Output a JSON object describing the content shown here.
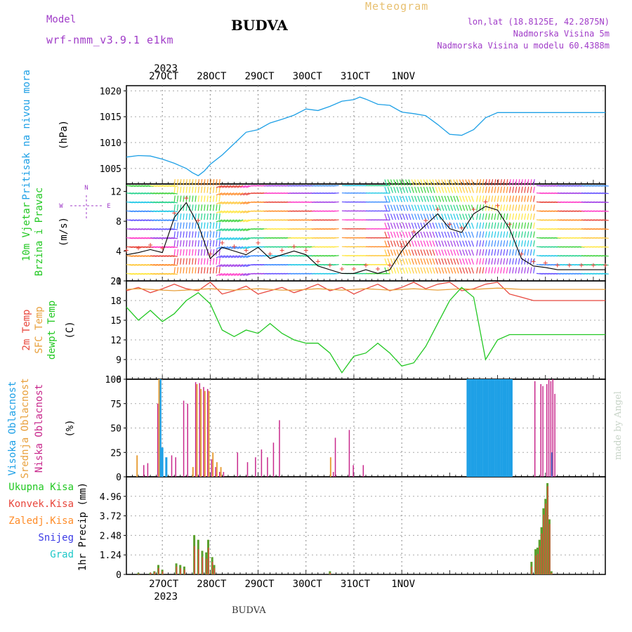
{
  "header": {
    "model_label": "Model",
    "model_name": "wrf-nmm_v3.9.1  e1km",
    "title": "BUDVA",
    "subtitle": "Meteogram",
    "coords": "lon,lat (18.8125E, 42.2875N)",
    "elevation": "Nadmorska Visina 5m",
    "model_elevation": "Nadmorska Visina u modelu 60.4388m",
    "footer": "BUDVA",
    "watermark": "made by Angel"
  },
  "colors": {
    "pressure": "#1EA0E6",
    "temp2m": "#E8463C",
    "sfc_temp": "#E8A03C",
    "dewpoint": "#23C823",
    "high_cloud": "#1EA0E6",
    "mid_cloud": "#E8A03C",
    "low_cloud": "#C8288C",
    "total_rain": "#5AA02D",
    "conv_rain": "#E8463C",
    "magenta_label": "#A03CC8"
  },
  "chart_data": [
    {
      "type": "line",
      "id": "pressure",
      "ylabel": "Pritisak na nivou mora",
      "unit": "(hPa)",
      "ylim": [
        1002,
        1021
      ],
      "yticks": [
        1005,
        1010,
        1015,
        1020
      ],
      "x": [
        0,
        6,
        12,
        18,
        24,
        27,
        30,
        33,
        36,
        39,
        42,
        48,
        54,
        60,
        66,
        72,
        78,
        84,
        90,
        96,
        102,
        108,
        114,
        117,
        120,
        126,
        132,
        138,
        144,
        150,
        156,
        162,
        168,
        174,
        180,
        186,
        192,
        198,
        204,
        210,
        216,
        222,
        228,
        234,
        240
      ],
      "series": [
        {
          "name": "pressure",
          "values": [
            1007.2,
            1007.5,
            1007.4,
            1006.8,
            1006.0,
            1005.5,
            1005.0,
            1004.2,
            1003.6,
            1004.5,
            1005.8,
            1007.6,
            1009.8,
            1012.0,
            1012.5,
            1013.8,
            1014.5,
            1015.3,
            1016.5,
            1016.2,
            1017.0,
            1018.0,
            1018.3,
            1018.8,
            1018.4,
            1017.4,
            1017.2,
            1015.9,
            1015.6,
            1015.2,
            1013.5,
            1011.6,
            1011.4,
            1012.5,
            1014.8,
            1015.8,
            1015.8,
            1015.8,
            1015.8,
            1015.8,
            1015.8,
            1015.8,
            1015.8,
            1015.8,
            1015.8
          ]
        }
      ]
    },
    {
      "type": "line",
      "id": "wind",
      "ylabel": "10m Vjetar",
      "ylabel2": "Brzina i Pravac",
      "unit": "(m/s)",
      "compass_top": "N",
      "compass_left": "W",
      "compass_right": "E",
      "ylim": [
        0,
        13
      ],
      "yticks": [
        0,
        4,
        8,
        12
      ],
      "x": [
        0,
        6,
        12,
        18,
        24,
        30,
        36,
        42,
        48,
        54,
        60,
        66,
        72,
        78,
        84,
        90,
        96,
        102,
        108,
        114,
        120,
        126,
        132,
        138,
        144,
        150,
        156,
        162,
        168,
        174,
        180,
        186,
        192,
        198,
        204,
        210,
        216,
        222,
        228,
        234,
        240
      ],
      "series": [
        {
          "name": "wind",
          "values": [
            3.5,
            3.8,
            4.2,
            3.8,
            8.5,
            10.5,
            7.5,
            3.0,
            4.5,
            4.0,
            3.5,
            4.5,
            3.0,
            3.5,
            4.0,
            3.5,
            2.0,
            1.5,
            1.0,
            1.0,
            1.5,
            1.0,
            1.5,
            4.0,
            6.0,
            7.5,
            9.0,
            7.0,
            6.5,
            9.0,
            10.0,
            9.5,
            7.0,
            3.0,
            2.0,
            1.8,
            1.5,
            1.5,
            1.5,
            1.5,
            1.5
          ]
        }
      ]
    },
    {
      "type": "line",
      "id": "temperature",
      "ylabel": "2m Temp",
      "ylabel2": "SFC Temp",
      "ylabel3": "dewpt Temp",
      "unit": "(C)",
      "ylim": [
        6,
        21
      ],
      "yticks": [
        6,
        9,
        12,
        15,
        18,
        21
      ],
      "x": [
        0,
        6,
        12,
        18,
        24,
        30,
        36,
        42,
        48,
        54,
        60,
        66,
        72,
        78,
        84,
        90,
        96,
        102,
        108,
        114,
        120,
        126,
        132,
        138,
        144,
        150,
        156,
        162,
        168,
        174,
        180,
        186,
        192,
        198,
        204,
        210,
        216,
        222,
        228,
        234,
        240
      ],
      "series": [
        {
          "name": "2m Temp",
          "values": [
            19.5,
            20.0,
            19.2,
            19.8,
            20.5,
            19.8,
            19.5,
            20.8,
            19.0,
            19.5,
            20.2,
            19.0,
            19.5,
            20.0,
            19.2,
            19.8,
            20.5,
            19.5,
            20.0,
            19.0,
            19.8,
            20.5,
            19.5,
            20.0,
            20.8,
            19.8,
            20.5,
            20.8,
            19.5,
            19.8,
            20.5,
            20.8,
            19.0,
            18.5,
            18.0,
            18.0,
            18.0,
            18.0,
            18.0,
            18.0,
            18.0
          ]
        },
        {
          "name": "SFC Temp",
          "values": [
            19.7,
            19.8,
            19.7,
            19.6,
            19.5,
            19.6,
            19.7,
            19.8,
            19.7,
            19.6,
            19.7,
            19.8,
            19.7,
            19.6,
            19.6,
            19.7,
            19.8,
            19.7,
            19.6,
            19.7,
            19.8,
            19.7,
            19.6,
            19.7,
            19.8,
            19.7,
            19.6,
            19.7,
            19.8,
            19.7,
            19.8,
            19.9,
            19.8,
            19.7,
            19.7,
            19.7,
            19.7,
            19.7,
            19.7,
            19.7,
            19.7
          ]
        },
        {
          "name": "dewpt Temp",
          "values": [
            17.0,
            15.0,
            16.5,
            14.8,
            16.0,
            18.0,
            19.2,
            17.5,
            13.5,
            12.5,
            13.5,
            13.0,
            14.5,
            13.0,
            12.0,
            11.5,
            11.5,
            10.0,
            7.0,
            9.5,
            10.0,
            11.5,
            10.0,
            8.0,
            8.5,
            11.0,
            14.5,
            18.0,
            20.0,
            18.5,
            9.0,
            12.0,
            12.8,
            12.8,
            12.8,
            12.8,
            12.8,
            12.8,
            12.8,
            12.8,
            12.8
          ]
        }
      ]
    },
    {
      "type": "bar",
      "id": "clouds",
      "ylabel": "Visoka Oblacnost",
      "ylabel2": "Srednja Oblacnost",
      "ylabel3": "Niska Oblacnost",
      "unit": "(%)",
      "ylim": [
        0,
        100
      ],
      "yticks": [
        0,
        25,
        50,
        75,
        100
      ],
      "series": [
        {
          "name": "Visoka Oblacnost",
          "x": [
            17,
            18,
            20,
            171,
            172,
            173,
            174,
            175,
            176,
            177,
            178,
            179,
            180,
            181,
            182,
            183,
            184,
            185,
            186,
            187,
            188,
            189,
            190,
            191,
            192,
            193,
            213
          ],
          "values": [
            100,
            30,
            20,
            100,
            100,
            100,
            100,
            100,
            100,
            100,
            100,
            100,
            100,
            100,
            100,
            100,
            100,
            100,
            100,
            100,
            100,
            100,
            100,
            100,
            100,
            100,
            25
          ]
        },
        {
          "name": "Srednja Oblacnost",
          "x": [
            5,
            16,
            33,
            35,
            37,
            39,
            41,
            43,
            45,
            47,
            102
          ],
          "values": [
            22,
            100,
            10,
            95,
            90,
            88,
            88,
            25,
            15,
            10,
            20
          ]
        },
        {
          "name": "Niska Oblacnost",
          "x": [
            8,
            10,
            15,
            22,
            24,
            28,
            30,
            34,
            36,
            38,
            40,
            42,
            44,
            46,
            48,
            55,
            60,
            64,
            67,
            70,
            73,
            76,
            103,
            104,
            111,
            113,
            118,
            204,
            207,
            208,
            210,
            211,
            212,
            213,
            214
          ],
          "values": [
            12,
            14,
            75,
            22,
            20,
            78,
            75,
            97,
            96,
            92,
            90,
            18,
            10,
            5,
            5,
            25,
            15,
            20,
            28,
            20,
            35,
            58,
            5,
            40,
            48,
            12,
            12,
            98,
            95,
            93,
            95,
            100,
            98,
            100,
            85
          ]
        }
      ]
    },
    {
      "type": "bar",
      "id": "precip",
      "legend": [
        "Ukupna Kisa",
        "Konvek.Kisa",
        "Zaledj.Kisa",
        "Snijeg",
        "Grad"
      ],
      "ylabel": "1hr Precip",
      "unit": "(mm)",
      "ylim": [
        0,
        6.2
      ],
      "yticks": [
        0,
        1.24,
        2.48,
        3.72,
        4.96
      ],
      "series": [
        {
          "name": "Ukupna Kisa",
          "x": [
            6,
            12,
            14,
            16,
            18,
            25,
            27,
            29,
            34,
            36,
            38,
            40,
            41,
            43,
            44,
            102,
            203,
            205,
            206,
            207,
            208,
            209,
            210,
            211,
            212,
            213
          ],
          "values": [
            0.1,
            0.1,
            0.2,
            0.6,
            0.3,
            0.7,
            0.6,
            0.5,
            2.5,
            2.2,
            1.5,
            1.4,
            2.2,
            1.1,
            0.6,
            0.2,
            0.8,
            1.6,
            1.7,
            2.2,
            3.0,
            4.2,
            4.8,
            5.8,
            3.5,
            0.2
          ]
        },
        {
          "name": "Konvek.Kisa",
          "x": [
            6,
            12,
            14,
            16,
            18,
            25,
            27,
            29,
            34,
            36,
            38,
            40,
            41,
            43,
            44,
            102,
            203,
            205,
            206,
            207,
            208,
            209,
            210,
            211,
            212,
            213
          ],
          "values": [
            0.05,
            0.1,
            0.15,
            0.4,
            0.2,
            0.5,
            0.4,
            0.3,
            1.8,
            1.6,
            1.1,
            1.0,
            1.7,
            0.8,
            0.4,
            0.1,
            0.5,
            1.2,
            1.3,
            1.8,
            2.6,
            3.8,
            4.5,
            5.6,
            3.2,
            0.1
          ]
        }
      ]
    }
  ],
  "time_axis": {
    "year": "2023",
    "day_labels": [
      "27OCT",
      "28OCT",
      "29OCT",
      "30OCT",
      "31OCT",
      "1NOV"
    ],
    "day_hours": [
      18,
      42,
      66,
      90,
      114,
      138
    ]
  }
}
